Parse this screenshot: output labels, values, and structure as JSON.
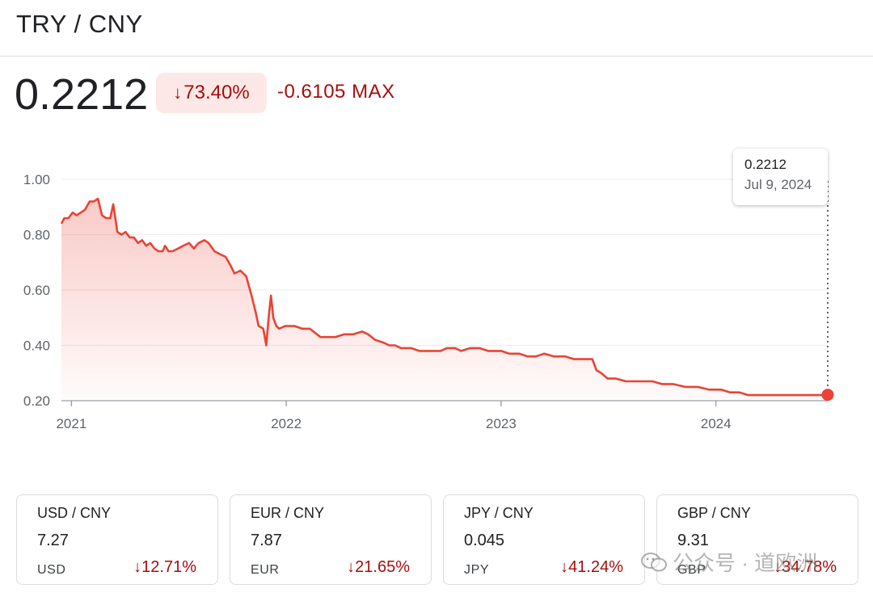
{
  "header": {
    "pair_title": "TRY / CNY"
  },
  "summary": {
    "price": "0.2212",
    "change_pct": "73.40%",
    "change_abs": "-0.6105",
    "range": "MAX"
  },
  "tooltip": {
    "value": "0.2212",
    "date": "Jul 9, 2024"
  },
  "colors": {
    "line": "#ea4335",
    "negative": "#a50e0e",
    "negative_bg": "#fce8e6"
  },
  "chart_data": {
    "type": "area",
    "title": "",
    "xlabel": "",
    "ylabel": "",
    "y_ticks": [
      "0.20",
      "0.40",
      "0.60",
      "0.80",
      "1.00"
    ],
    "x_ticks": [
      "2021",
      "2022",
      "2023",
      "2024"
    ],
    "ylim": [
      0.2,
      1.0
    ],
    "xlim": [
      "2020-12-15",
      "2024-07-09"
    ],
    "grid": true,
    "legend": "none",
    "series": [
      {
        "points": [
          [
            "2020-12-15",
            0.84
          ],
          [
            "2020-12-20",
            0.86
          ],
          [
            "2020-12-27",
            0.86
          ],
          [
            "2021-01-03",
            0.88
          ],
          [
            "2021-01-10",
            0.87
          ],
          [
            "2021-01-17",
            0.88
          ],
          [
            "2021-01-24",
            0.89
          ],
          [
            "2021-02-01",
            0.92
          ],
          [
            "2021-02-08",
            0.92
          ],
          [
            "2021-02-15",
            0.93
          ],
          [
            "2021-02-22",
            0.87
          ],
          [
            "2021-03-01",
            0.86
          ],
          [
            "2021-03-08",
            0.86
          ],
          [
            "2021-03-13",
            0.91
          ],
          [
            "2021-03-20",
            0.81
          ],
          [
            "2021-03-27",
            0.8
          ],
          [
            "2021-04-03",
            0.81
          ],
          [
            "2021-04-10",
            0.79
          ],
          [
            "2021-04-17",
            0.79
          ],
          [
            "2021-04-24",
            0.77
          ],
          [
            "2021-05-01",
            0.78
          ],
          [
            "2021-05-08",
            0.76
          ],
          [
            "2021-05-15",
            0.77
          ],
          [
            "2021-05-22",
            0.75
          ],
          [
            "2021-05-29",
            0.74
          ],
          [
            "2021-06-05",
            0.74
          ],
          [
            "2021-06-09",
            0.76
          ],
          [
            "2021-06-15",
            0.74
          ],
          [
            "2021-06-22",
            0.74
          ],
          [
            "2021-07-01",
            0.75
          ],
          [
            "2021-07-10",
            0.76
          ],
          [
            "2021-07-20",
            0.77
          ],
          [
            "2021-07-28",
            0.75
          ],
          [
            "2021-08-05",
            0.77
          ],
          [
            "2021-08-15",
            0.78
          ],
          [
            "2021-08-22",
            0.77
          ],
          [
            "2021-09-01",
            0.74
          ],
          [
            "2021-09-10",
            0.73
          ],
          [
            "2021-09-20",
            0.72
          ],
          [
            "2021-09-28",
            0.69
          ],
          [
            "2021-10-05",
            0.66
          ],
          [
            "2021-10-15",
            0.67
          ],
          [
            "2021-10-25",
            0.65
          ],
          [
            "2021-11-03",
            0.58
          ],
          [
            "2021-11-10",
            0.52
          ],
          [
            "2021-11-15",
            0.47
          ],
          [
            "2021-11-23",
            0.46
          ],
          [
            "2021-11-28",
            0.4
          ],
          [
            "2021-12-02",
            0.5
          ],
          [
            "2021-12-06",
            0.58
          ],
          [
            "2021-12-10",
            0.5
          ],
          [
            "2021-12-15",
            0.47
          ],
          [
            "2021-12-20",
            0.46
          ],
          [
            "2021-12-30",
            0.47
          ],
          [
            "2022-01-15",
            0.47
          ],
          [
            "2022-01-28",
            0.46
          ],
          [
            "2022-02-10",
            0.46
          ],
          [
            "2022-02-28",
            0.43
          ],
          [
            "2022-03-15",
            0.43
          ],
          [
            "2022-03-25",
            0.43
          ],
          [
            "2022-04-10",
            0.44
          ],
          [
            "2022-04-25",
            0.44
          ],
          [
            "2022-05-10",
            0.45
          ],
          [
            "2022-05-20",
            0.44
          ],
          [
            "2022-06-01",
            0.42
          ],
          [
            "2022-06-15",
            0.41
          ],
          [
            "2022-06-25",
            0.4
          ],
          [
            "2022-07-05",
            0.4
          ],
          [
            "2022-07-15",
            0.39
          ],
          [
            "2022-08-01",
            0.39
          ],
          [
            "2022-08-15",
            0.38
          ],
          [
            "2022-09-01",
            0.38
          ],
          [
            "2022-09-20",
            0.38
          ],
          [
            "2022-10-01",
            0.39
          ],
          [
            "2022-10-15",
            0.39
          ],
          [
            "2022-10-25",
            0.38
          ],
          [
            "2022-11-10",
            0.39
          ],
          [
            "2022-11-25",
            0.39
          ],
          [
            "2022-12-10",
            0.38
          ],
          [
            "2023-01-01",
            0.38
          ],
          [
            "2023-01-15",
            0.37
          ],
          [
            "2023-02-01",
            0.37
          ],
          [
            "2023-02-15",
            0.36
          ],
          [
            "2023-03-01",
            0.36
          ],
          [
            "2023-03-15",
            0.37
          ],
          [
            "2023-04-01",
            0.36
          ],
          [
            "2023-04-20",
            0.36
          ],
          [
            "2023-05-05",
            0.35
          ],
          [
            "2023-05-25",
            0.35
          ],
          [
            "2023-06-05",
            0.35
          ],
          [
            "2023-06-12",
            0.31
          ],
          [
            "2023-06-20",
            0.3
          ],
          [
            "2023-07-01",
            0.28
          ],
          [
            "2023-07-15",
            0.28
          ],
          [
            "2023-08-01",
            0.27
          ],
          [
            "2023-08-20",
            0.27
          ],
          [
            "2023-09-01",
            0.27
          ],
          [
            "2023-09-15",
            0.27
          ],
          [
            "2023-10-01",
            0.26
          ],
          [
            "2023-10-20",
            0.26
          ],
          [
            "2023-11-10",
            0.25
          ],
          [
            "2023-12-01",
            0.25
          ],
          [
            "2023-12-20",
            0.24
          ],
          [
            "2024-01-10",
            0.24
          ],
          [
            "2024-01-25",
            0.23
          ],
          [
            "2024-02-10",
            0.23
          ],
          [
            "2024-02-25",
            0.22
          ],
          [
            "2024-03-10",
            0.22
          ],
          [
            "2024-03-25",
            0.22
          ],
          [
            "2024-04-10",
            0.22
          ],
          [
            "2024-05-01",
            0.22
          ],
          [
            "2024-05-20",
            0.22
          ],
          [
            "2024-06-10",
            0.22
          ],
          [
            "2024-06-25",
            0.22
          ],
          [
            "2024-07-09",
            0.2212
          ]
        ]
      }
    ],
    "highlight": {
      "x": "2024-07-09",
      "y": 0.2212
    }
  },
  "cards": [
    {
      "pair": "USD / CNY",
      "value": "7.27",
      "currency": "USD",
      "change": "12.71%"
    },
    {
      "pair": "EUR / CNY",
      "value": "7.87",
      "currency": "EUR",
      "change": "21.65%"
    },
    {
      "pair": "JPY / CNY",
      "value": "0.045",
      "currency": "JPY",
      "change": "41.24%"
    },
    {
      "pair": "GBP / CNY",
      "value": "9.31",
      "currency": "GBP",
      "change": "34.78%"
    }
  ],
  "watermark": {
    "text": "公众号 · 道欧洲",
    "icon": "wechat-icon"
  }
}
